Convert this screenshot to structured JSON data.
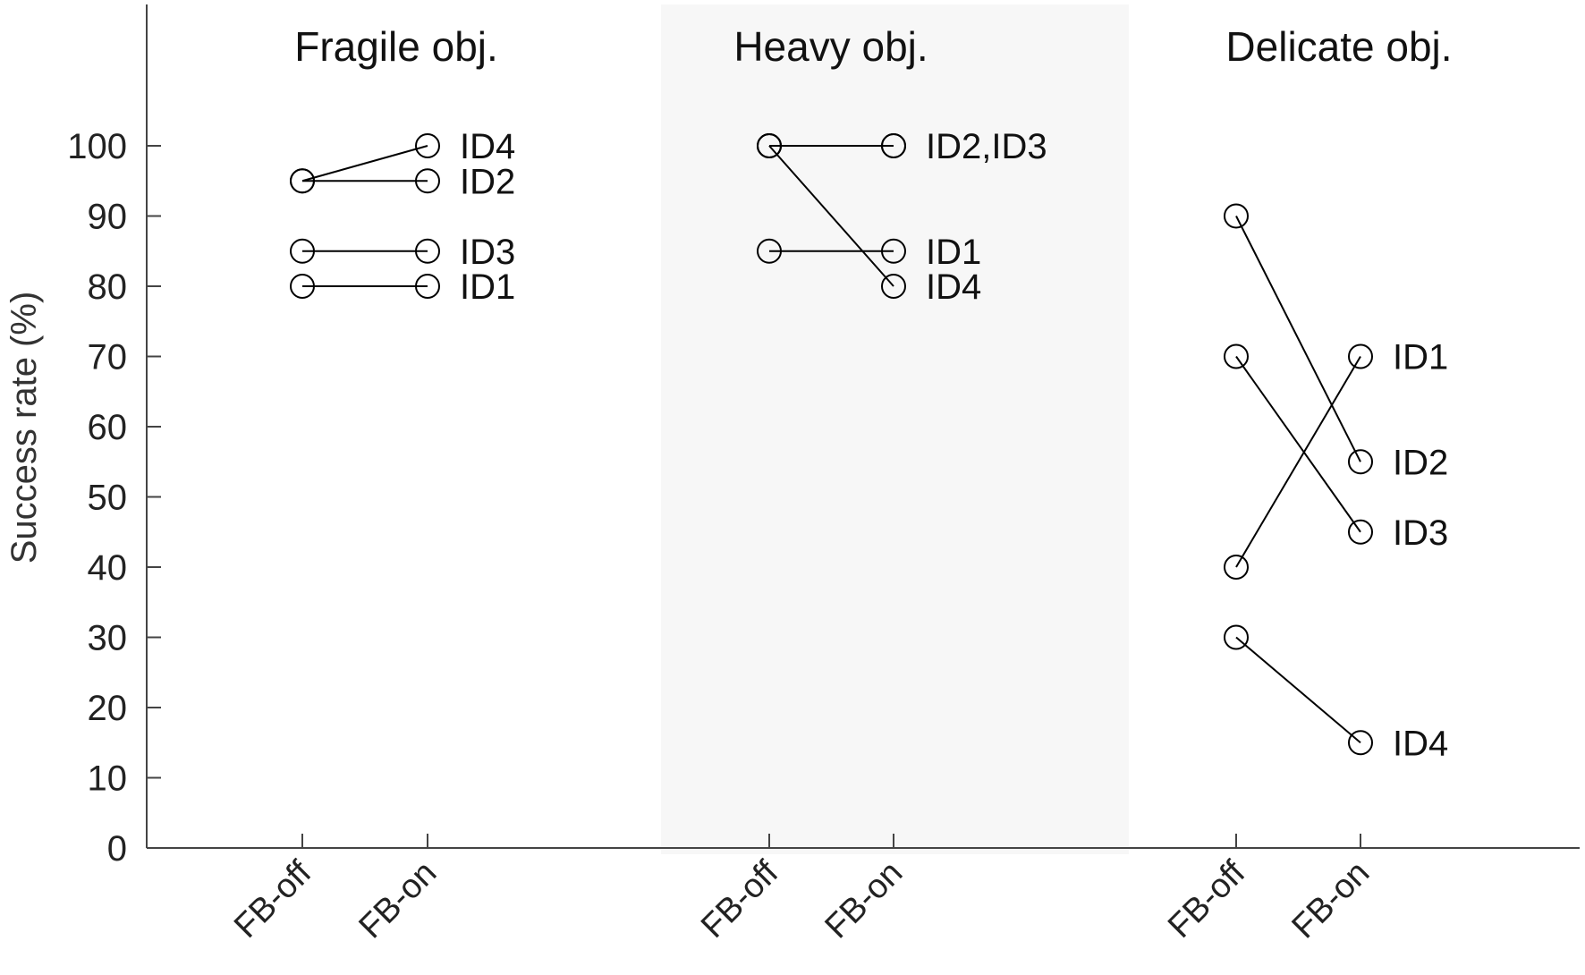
{
  "chart_data": {
    "type": "line",
    "title": "",
    "xlabel": "",
    "ylabel": "Success rate (%)",
    "ylim": [
      0,
      100
    ],
    "yticks": [
      0,
      10,
      20,
      30,
      40,
      50,
      60,
      70,
      80,
      90,
      100
    ],
    "grid": false,
    "legend": null,
    "categories": [
      "FB-off",
      "FB-on"
    ],
    "panels": [
      {
        "title": "Fragile obj.",
        "shaded": false,
        "series": [
          {
            "name": "ID4",
            "values": [
              95,
              100
            ]
          },
          {
            "name": "ID2",
            "values": [
              95,
              95
            ]
          },
          {
            "name": "ID3",
            "values": [
              85,
              85
            ]
          },
          {
            "name": "ID1",
            "values": [
              80,
              80
            ]
          }
        ],
        "labels": [
          {
            "text": "ID4",
            "y": 100
          },
          {
            "text": "ID2",
            "y": 95
          },
          {
            "text": "ID3",
            "y": 85
          },
          {
            "text": "ID1",
            "y": 80
          }
        ]
      },
      {
        "title": "Heavy obj.",
        "shaded": true,
        "series": [
          {
            "name": "ID2",
            "values": [
              100,
              100
            ]
          },
          {
            "name": "ID3",
            "values": [
              100,
              100
            ]
          },
          {
            "name": "ID1",
            "values": [
              85,
              85
            ]
          },
          {
            "name": "ID4",
            "values": [
              100,
              80
            ]
          }
        ],
        "labels": [
          {
            "text": "ID2,ID3",
            "y": 100
          },
          {
            "text": "ID1",
            "y": 85
          },
          {
            "text": "ID4",
            "y": 80
          }
        ]
      },
      {
        "title": "Delicate obj.",
        "shaded": false,
        "series": [
          {
            "name": "ID1",
            "values": [
              40,
              70
            ]
          },
          {
            "name": "ID2",
            "values": [
              90,
              55
            ]
          },
          {
            "name": "ID3",
            "values": [
              70,
              45
            ]
          },
          {
            "name": "ID4",
            "values": [
              30,
              15
            ]
          }
        ],
        "labels": [
          {
            "text": "ID1",
            "y": 70
          },
          {
            "text": "ID2",
            "y": 55
          },
          {
            "text": "ID3",
            "y": 45
          },
          {
            "text": "ID4",
            "y": 15
          }
        ]
      }
    ]
  },
  "colors": {
    "axis": "#444444",
    "line": "#000000",
    "text": "#222222",
    "shade": "#f7f7f7"
  }
}
